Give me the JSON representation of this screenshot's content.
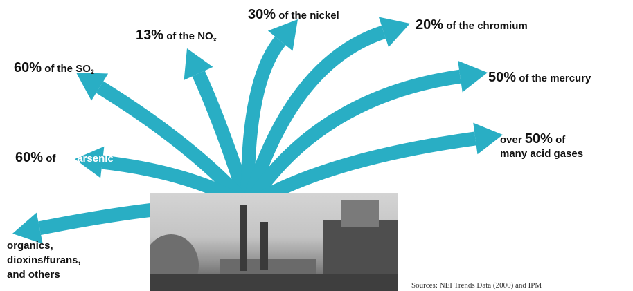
{
  "arrow_color": "#29aec4",
  "labels": {
    "nox": {
      "pct": "13%",
      "text": "of the NO",
      "sub": "x"
    },
    "nickel": {
      "pct": "30%",
      "text": "of the nickel"
    },
    "chromium": {
      "pct": "20%",
      "text": "of the chromium"
    },
    "so2": {
      "pct": "60%",
      "text": "of the SO",
      "sub": "2"
    },
    "mercury": {
      "pct": "50%",
      "text": "of the mercury"
    },
    "acid_gases": {
      "prefix": "over",
      "pct": "50%",
      "text": "of",
      "line2": "many acid gases"
    },
    "arsenic": {
      "pct": "60%",
      "text_dark": "of",
      "text_light": "the arsenic"
    },
    "organics": {
      "line1": "organics,",
      "line2": "dioxins/furans,",
      "line3": "and others"
    }
  },
  "sources": "Sources: NEI Trends Data (2000) and IPM"
}
